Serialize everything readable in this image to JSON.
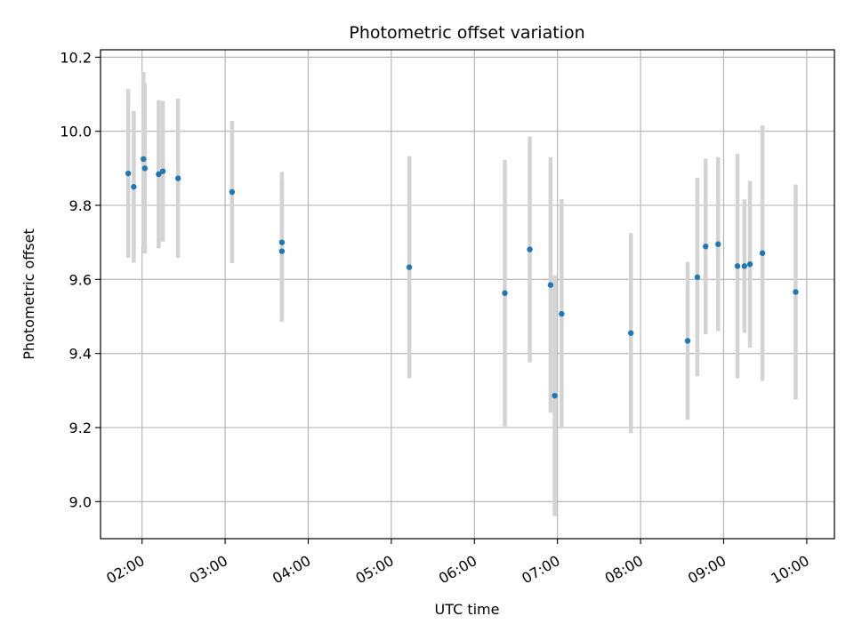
{
  "chart_data": {
    "type": "scatter",
    "title": "Photometric offset variation",
    "xlabel": "UTC time",
    "ylabel": "Photometric offset",
    "grid": true,
    "xlim": [
      "01:30",
      "10:20"
    ],
    "ylim": [
      8.9,
      10.22
    ],
    "x_ticks": [
      "02:00",
      "03:00",
      "04:00",
      "05:00",
      "06:00",
      "07:00",
      "08:00",
      "09:00",
      "10:00"
    ],
    "y_ticks": [
      9.0,
      9.2,
      9.4,
      9.6,
      9.8,
      10.0,
      10.2
    ],
    "y_tick_labels": [
      "9.0",
      "9.2",
      "9.4",
      "9.6",
      "9.8",
      "10.0",
      "10.2"
    ],
    "colors": {
      "marker": "#1f77b4",
      "errorbar": "#d3d3d3",
      "grid": "#b0b0b0"
    },
    "points": [
      {
        "x": "01:50",
        "y": 9.886,
        "yerr": 0.228
      },
      {
        "x": "01:54",
        "y": 9.85,
        "yerr": 0.205
      },
      {
        "x": "02:01",
        "y": 9.925,
        "yerr": 0.235
      },
      {
        "x": "02:02",
        "y": 9.9,
        "yerr": 0.23
      },
      {
        "x": "02:12",
        "y": 9.884,
        "yerr": 0.2
      },
      {
        "x": "02:15",
        "y": 9.892,
        "yerr": 0.19
      },
      {
        "x": "02:26",
        "y": 9.873,
        "yerr": 0.215
      },
      {
        "x": "03:05",
        "y": 9.836,
        "yerr": 0.192
      },
      {
        "x": "03:41",
        "y": 9.7,
        "yerr": 0.19
      },
      {
        "x": "03:41",
        "y": 9.676,
        "yerr": 0.19
      },
      {
        "x": "05:13",
        "y": 9.633,
        "yerr": 0.3
      },
      {
        "x": "06:22",
        "y": 9.563,
        "yerr": 0.36
      },
      {
        "x": "06:40",
        "y": 9.681,
        "yerr": 0.305
      },
      {
        "x": "06:55",
        "y": 9.585,
        "yerr": 0.345
      },
      {
        "x": "06:58",
        "y": 9.286,
        "yerr": 0.325
      },
      {
        "x": "07:03",
        "y": 9.507,
        "yerr": 0.31
      },
      {
        "x": "07:53",
        "y": 9.455,
        "yerr": 0.27
      },
      {
        "x": "08:34",
        "y": 9.434,
        "yerr": 0.213
      },
      {
        "x": "08:41",
        "y": 9.606,
        "yerr": 0.268
      },
      {
        "x": "08:47",
        "y": 9.689,
        "yerr": 0.237
      },
      {
        "x": "08:56",
        "y": 9.695,
        "yerr": 0.235
      },
      {
        "x": "09:10",
        "y": 9.636,
        "yerr": 0.303
      },
      {
        "x": "09:15",
        "y": 9.636,
        "yerr": 0.18
      },
      {
        "x": "09:19",
        "y": 9.641,
        "yerr": 0.225
      },
      {
        "x": "09:28",
        "y": 9.671,
        "yerr": 0.345
      },
      {
        "x": "09:52",
        "y": 9.566,
        "yerr": 0.29
      }
    ]
  }
}
